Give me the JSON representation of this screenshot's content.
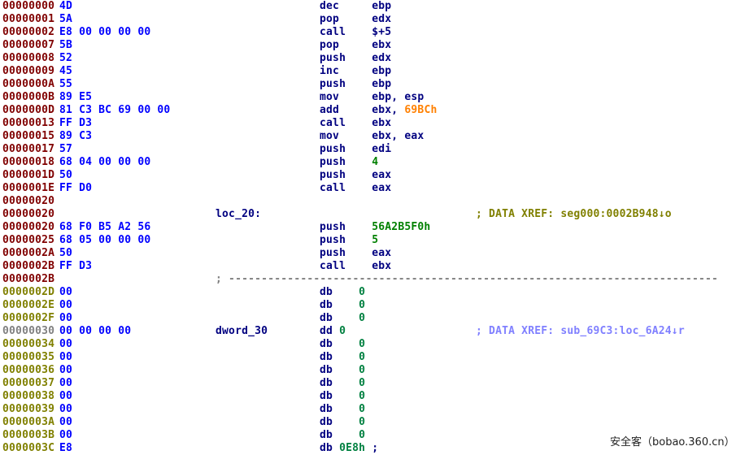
{
  "colors": {
    "address_code": "#800000",
    "address_data": "#808000",
    "address_unexplored": "#808080",
    "bytes": "#0000ff",
    "mnemonic": "#000080",
    "number": "#008000",
    "immediate": "#ff8000",
    "comment_xref": "#808000",
    "comment_xref_alt": "#8080ff"
  },
  "rows": [
    {
      "addr": "00000000",
      "k": "code",
      "bytes": "4D",
      "mnem": "dec",
      "op": [
        {
          "t": "ebp",
          "c": "reg"
        }
      ]
    },
    {
      "addr": "00000001",
      "k": "code",
      "bytes": "5A",
      "mnem": "pop",
      "op": [
        {
          "t": "edx",
          "c": "reg"
        }
      ]
    },
    {
      "addr": "00000002",
      "k": "code",
      "bytes": "E8 00 00 00 00",
      "mnem": "call",
      "op": [
        {
          "t": "$+5",
          "c": "reg"
        }
      ]
    },
    {
      "addr": "00000007",
      "k": "code",
      "bytes": "5B",
      "mnem": "pop",
      "op": [
        {
          "t": "ebx",
          "c": "reg"
        }
      ]
    },
    {
      "addr": "00000008",
      "k": "code",
      "bytes": "52",
      "mnem": "push",
      "op": [
        {
          "t": "edx",
          "c": "reg"
        }
      ]
    },
    {
      "addr": "00000009",
      "k": "code",
      "bytes": "45",
      "mnem": "inc",
      "op": [
        {
          "t": "ebp",
          "c": "reg"
        }
      ]
    },
    {
      "addr": "0000000A",
      "k": "code",
      "bytes": "55",
      "mnem": "push",
      "op": [
        {
          "t": "ebp",
          "c": "reg"
        }
      ]
    },
    {
      "addr": "0000000B",
      "k": "code",
      "bytes": "89 E5",
      "mnem": "mov",
      "op": [
        {
          "t": "ebp, esp",
          "c": "reg"
        }
      ]
    },
    {
      "addr": "0000000D",
      "k": "code",
      "bytes": "81 C3 BC 69 00 00",
      "mnem": "add",
      "op": [
        {
          "t": "ebx, ",
          "c": "reg"
        },
        {
          "t": "69BCh",
          "c": "imm"
        }
      ]
    },
    {
      "addr": "00000013",
      "k": "code",
      "bytes": "FF D3",
      "mnem": "call",
      "op": [
        {
          "t": "ebx",
          "c": "reg"
        }
      ]
    },
    {
      "addr": "00000015",
      "k": "code",
      "bytes": "89 C3",
      "mnem": "mov",
      "op": [
        {
          "t": "ebx, eax",
          "c": "reg"
        }
      ]
    },
    {
      "addr": "00000017",
      "k": "code",
      "bytes": "57",
      "mnem": "push",
      "op": [
        {
          "t": "edi",
          "c": "reg"
        }
      ]
    },
    {
      "addr": "00000018",
      "k": "code",
      "bytes": "68 04 00 00 00",
      "mnem": "push",
      "op": [
        {
          "t": "4",
          "c": "num"
        }
      ]
    },
    {
      "addr": "0000001D",
      "k": "code",
      "bytes": "50",
      "mnem": "push",
      "op": [
        {
          "t": "eax",
          "c": "reg"
        }
      ]
    },
    {
      "addr": "0000001E",
      "k": "code",
      "bytes": "FF D0",
      "mnem": "call",
      "op": [
        {
          "t": "eax",
          "c": "reg"
        }
      ]
    },
    {
      "addr": "00000020",
      "k": "code"
    },
    {
      "addr": "00000020",
      "k": "code",
      "label": "loc_20:",
      "comment": "; DATA XREF: seg000:0002B948↓o",
      "cm": "olive"
    },
    {
      "addr": "00000020",
      "k": "code",
      "bytes": "68 F0 B5 A2 56",
      "mnem": "push",
      "op": [
        {
          "t": "56A2B5F0h",
          "c": "num"
        }
      ]
    },
    {
      "addr": "00000025",
      "k": "code",
      "bytes": "68 05 00 00 00",
      "mnem": "push",
      "op": [
        {
          "t": "5",
          "c": "num"
        }
      ]
    },
    {
      "addr": "0000002A",
      "k": "code",
      "bytes": "50",
      "mnem": "push",
      "op": [
        {
          "t": "eax",
          "c": "reg"
        }
      ]
    },
    {
      "addr": "0000002B",
      "k": "code",
      "bytes": "FF D3",
      "mnem": "call",
      "op": [
        {
          "t": "ebx",
          "c": "reg"
        }
      ]
    },
    {
      "addr": "0000002B",
      "k": "code",
      "sep": "; ---------------------------------------------------------------------------"
    },
    {
      "addr": "0000002D",
      "k": "data",
      "bytes": "00",
      "mnem": "db",
      "op": [
        {
          "t": "0",
          "c": "db"
        }
      ],
      "pad": 6
    },
    {
      "addr": "0000002E",
      "k": "data",
      "bytes": "00",
      "mnem": "db",
      "op": [
        {
          "t": "0",
          "c": "db"
        }
      ],
      "pad": 6
    },
    {
      "addr": "0000002F",
      "k": "data",
      "bytes": "00",
      "mnem": "db",
      "op": [
        {
          "t": "0",
          "c": "db"
        }
      ],
      "pad": 6
    },
    {
      "addr": "00000030",
      "k": "unk",
      "bytes": "00 00 00 00",
      "label": "dword_30",
      "mnem": "dd",
      "op": [
        {
          "t": "0",
          "c": "db"
        }
      ],
      "pad": 3,
      "comment": "; DATA XREF: sub_69C3:loc_6A24↓r",
      "cm": "blue"
    },
    {
      "addr": "00000034",
      "k": "data",
      "bytes": "00",
      "mnem": "db",
      "op": [
        {
          "t": "0",
          "c": "db"
        }
      ],
      "pad": 6
    },
    {
      "addr": "00000035",
      "k": "data",
      "bytes": "00",
      "mnem": "db",
      "op": [
        {
          "t": "0",
          "c": "db"
        }
      ],
      "pad": 6
    },
    {
      "addr": "00000036",
      "k": "data",
      "bytes": "00",
      "mnem": "db",
      "op": [
        {
          "t": "0",
          "c": "db"
        }
      ],
      "pad": 6
    },
    {
      "addr": "00000037",
      "k": "data",
      "bytes": "00",
      "mnem": "db",
      "op": [
        {
          "t": "0",
          "c": "db"
        }
      ],
      "pad": 6
    },
    {
      "addr": "00000038",
      "k": "data",
      "bytes": "00",
      "mnem": "db",
      "op": [
        {
          "t": "0",
          "c": "db"
        }
      ],
      "pad": 6
    },
    {
      "addr": "00000039",
      "k": "data",
      "bytes": "00",
      "mnem": "db",
      "op": [
        {
          "t": "0",
          "c": "db"
        }
      ],
      "pad": 6
    },
    {
      "addr": "0000003A",
      "k": "data",
      "bytes": "00",
      "mnem": "db",
      "op": [
        {
          "t": "0",
          "c": "db"
        }
      ],
      "pad": 6
    },
    {
      "addr": "0000003B",
      "k": "data",
      "bytes": "00",
      "mnem": "db",
      "op": [
        {
          "t": "0",
          "c": "db"
        }
      ],
      "pad": 6
    },
    {
      "addr": "0000003C",
      "k": "data",
      "bytes": "E8",
      "mnem": "db",
      "op": [
        {
          "t": "0E8h",
          "c": "db"
        },
        {
          "t": " ;",
          "c": "reg"
        }
      ],
      "pad": 3
    }
  ],
  "watermark": "安全客（bobao.360.cn）"
}
